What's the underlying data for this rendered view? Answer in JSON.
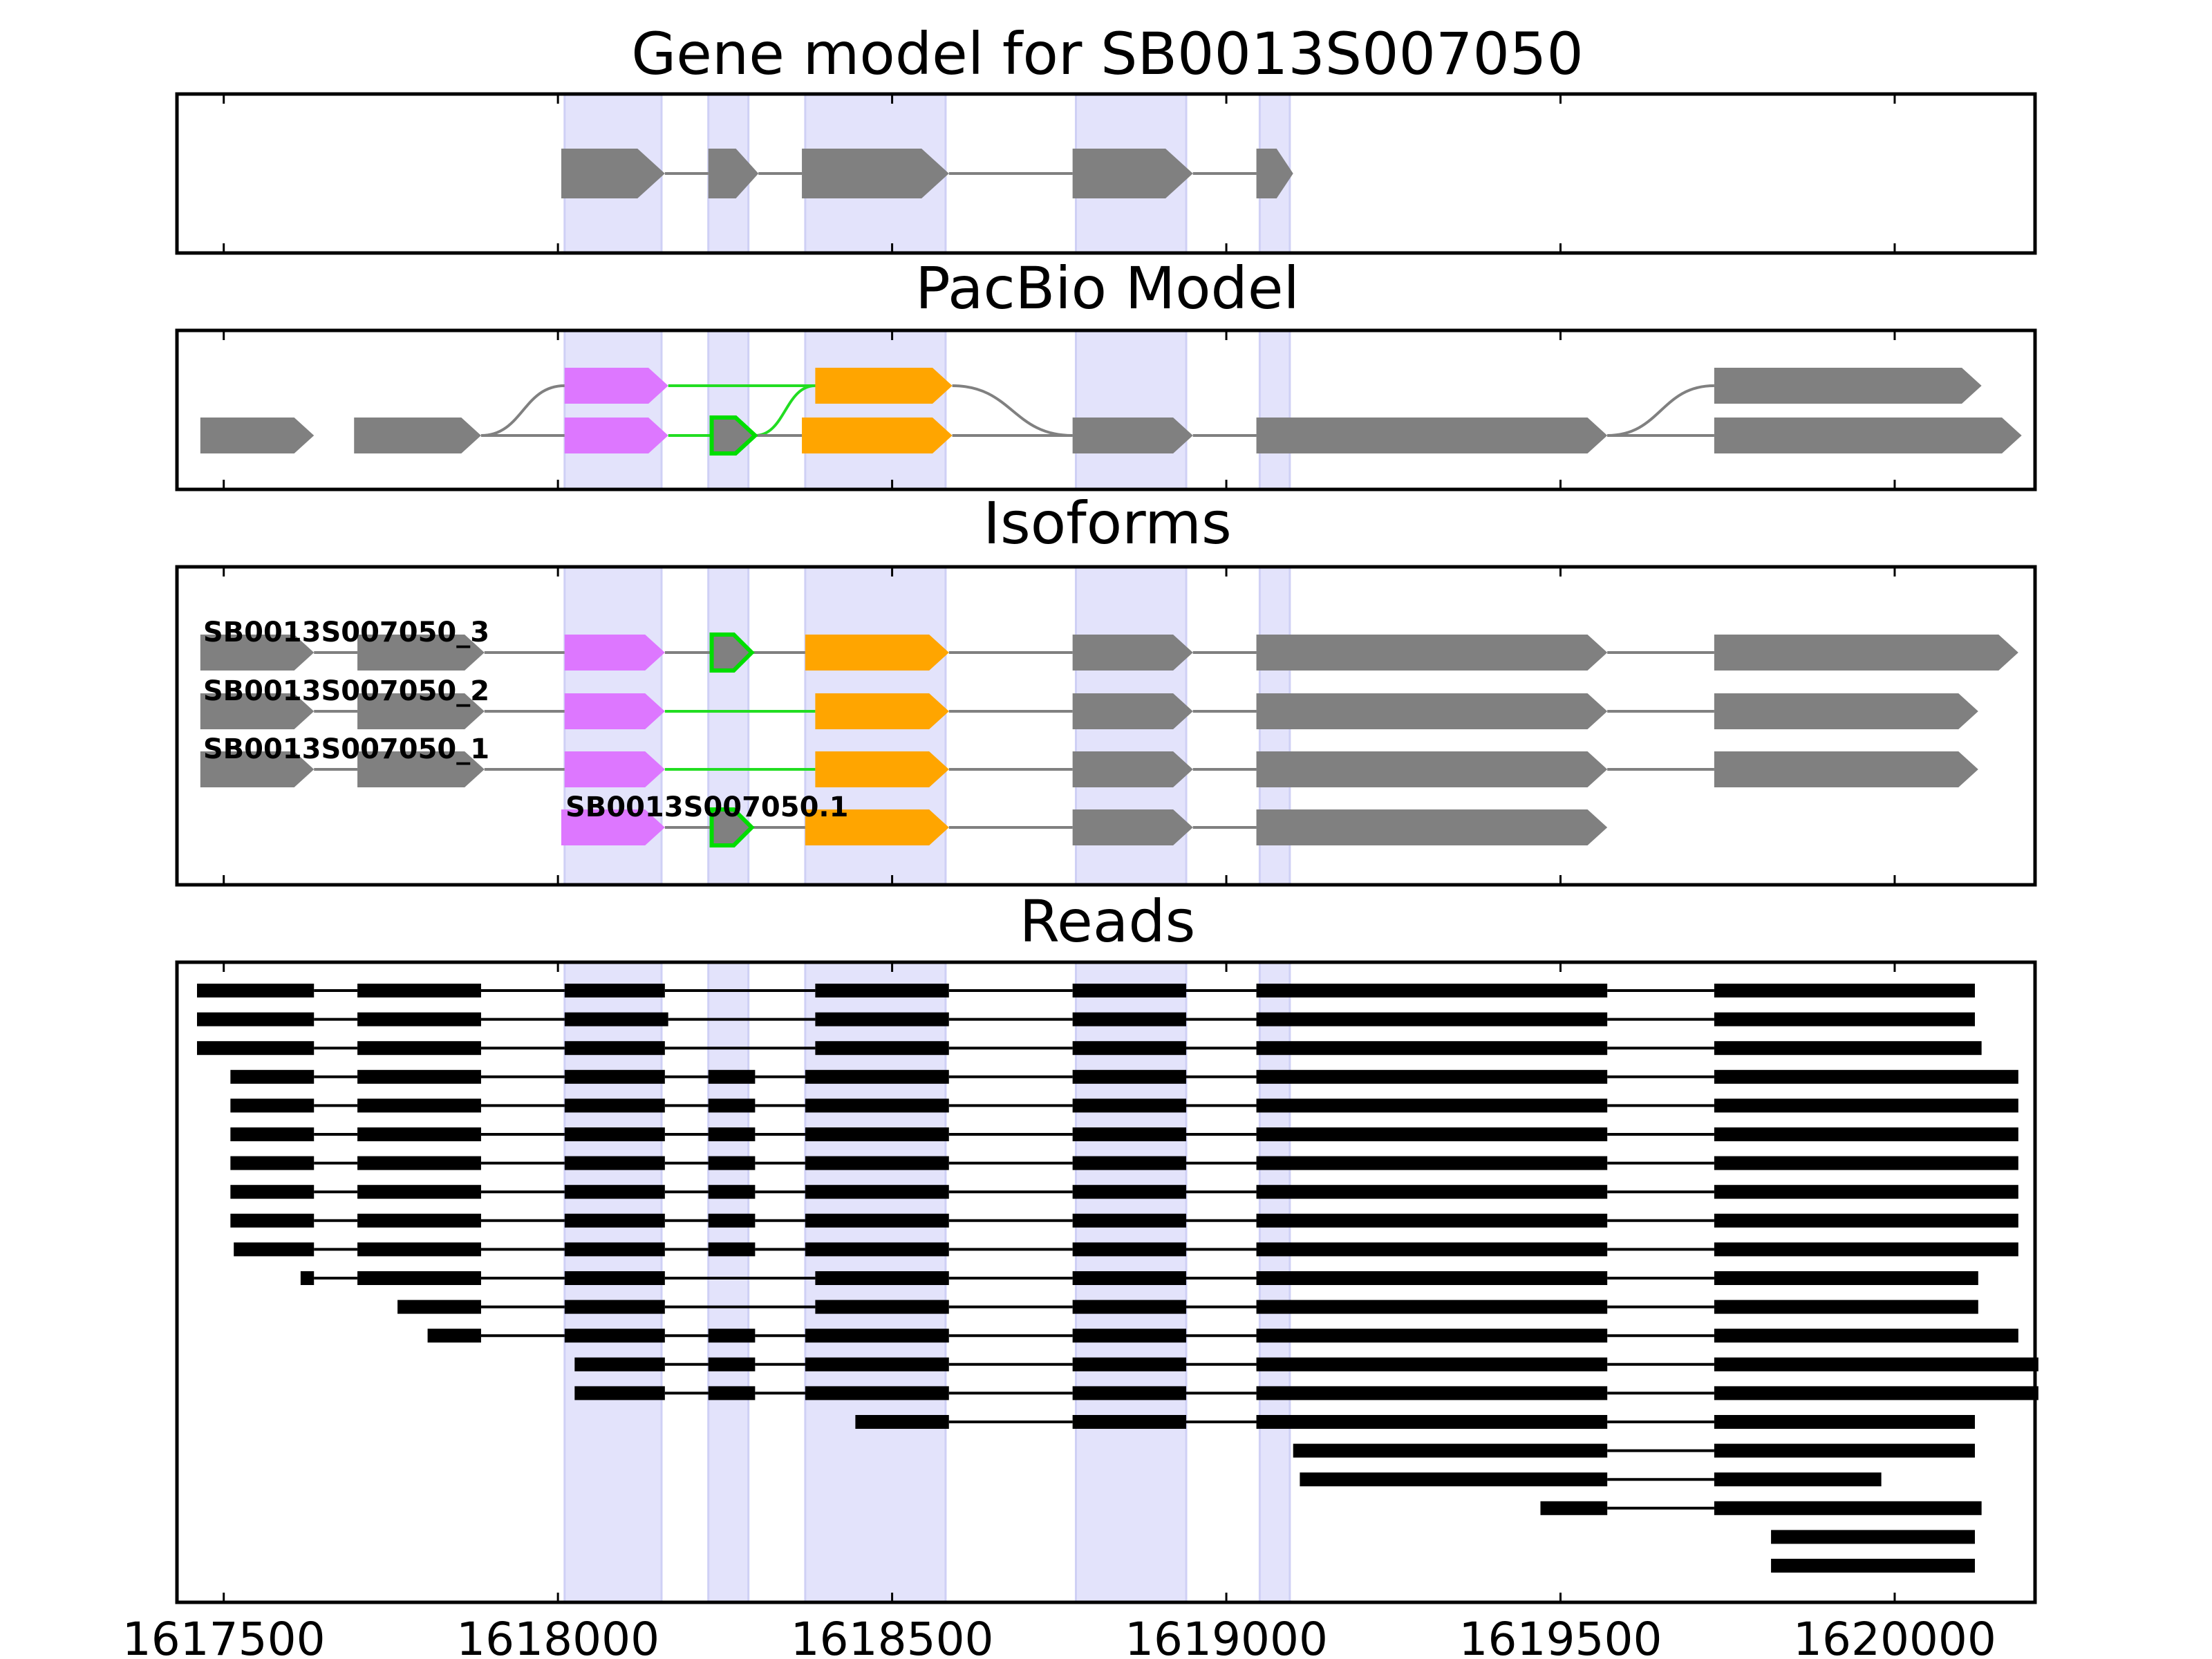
{
  "panels": {
    "gene_model": {
      "title": "Gene model for SB0013S007050"
    },
    "pacbio": {
      "title": "PacBio Model"
    },
    "isoforms": {
      "title": "Isoforms"
    },
    "reads": {
      "title": "Reads"
    }
  },
  "colors": {
    "exon_default": "#808080",
    "exon_magenta": "#dd77ff",
    "exon_orange": "#ffa500",
    "exon_green_outline": "#00dd00",
    "junction_default": "#808080",
    "junction_green": "#22dd22",
    "highlight": "#e3e3fb",
    "read": "#000000"
  },
  "chart_data": {
    "type": "gene_structure",
    "xlim": [
      1617430,
      1620210
    ],
    "x_ticks": [
      1617500,
      1618000,
      1618500,
      1619000,
      1619500,
      1620000
    ],
    "x_tick_labels": [
      "1617500",
      "1618000",
      "1618500",
      "1619000",
      "1619500",
      "1620000"
    ],
    "highlight_regions": [
      [
        1618010,
        1618155
      ],
      [
        1618225,
        1618285
      ],
      [
        1618370,
        1618580
      ],
      [
        1618775,
        1618940
      ],
      [
        1619050,
        1619095
      ]
    ],
    "gene_model": {
      "exons": [
        [
          1618005,
          1618160
        ],
        [
          1618225,
          1618300
        ],
        [
          1618365,
          1618585
        ],
        [
          1618770,
          1618950
        ],
        [
          1619045,
          1619100
        ]
      ]
    },
    "pacbio_model": {
      "rows": [
        {
          "exons": [
            {
              "s": 1618010,
              "e": 1618165,
              "color": "magenta"
            },
            {
              "s": 1618385,
              "e": 1618590,
              "color": "orange"
            },
            {
              "s": 1619730,
              "e": 1620130,
              "color": "default"
            }
          ]
        },
        {
          "exons": [
            {
              "s": 1617465,
              "e": 1617635,
              "color": "default"
            },
            {
              "s": 1617695,
              "e": 1617885,
              "color": "default"
            },
            {
              "s": 1618010,
              "e": 1618165,
              "color": "magenta"
            },
            {
              "s": 1618230,
              "e": 1618295,
              "color": "green"
            },
            {
              "s": 1618365,
              "e": 1618590,
              "color": "orange"
            },
            {
              "s": 1618770,
              "e": 1618950,
              "color": "default"
            },
            {
              "s": 1619045,
              "e": 1619570,
              "color": "default"
            },
            {
              "s": 1619730,
              "e": 1620190,
              "color": "default"
            }
          ]
        }
      ],
      "junctions": [
        {
          "x1": 1617885,
          "r1": 1,
          "x2": 1618010,
          "r2": 0,
          "color": "default"
        },
        {
          "x1": 1617885,
          "r1": 1,
          "x2": 1618010,
          "r2": 1,
          "color": "default"
        },
        {
          "x1": 1618165,
          "r1": 0,
          "x2": 1618385,
          "r2": 0,
          "color": "green"
        },
        {
          "x1": 1618165,
          "r1": 1,
          "x2": 1618230,
          "r2": 1,
          "color": "green"
        },
        {
          "x1": 1618295,
          "r1": 1,
          "x2": 1618385,
          "r2": 0,
          "color": "green"
        },
        {
          "x1": 1618295,
          "r1": 1,
          "x2": 1618365,
          "r2": 1,
          "color": "default"
        },
        {
          "x1": 1618590,
          "r1": 0,
          "x2": 1618770,
          "r2": 1,
          "color": "default"
        },
        {
          "x1": 1618590,
          "r1": 1,
          "x2": 1618770,
          "r2": 1,
          "color": "default"
        },
        {
          "x1": 1618950,
          "r1": 1,
          "x2": 1619045,
          "r2": 1,
          "color": "default"
        },
        {
          "x1": 1619570,
          "r1": 1,
          "x2": 1619730,
          "r2": 0,
          "color": "default"
        },
        {
          "x1": 1619570,
          "r1": 1,
          "x2": 1619730,
          "r2": 1,
          "color": "default"
        }
      ]
    },
    "isoforms": [
      {
        "name": "SB0013S007050_3",
        "exons": [
          {
            "s": 1617465,
            "e": 1617635,
            "color": "default"
          },
          {
            "s": 1617700,
            "e": 1617890,
            "color": "default"
          },
          {
            "s": 1618010,
            "e": 1618160,
            "color": "magenta"
          },
          {
            "s": 1618230,
            "e": 1618290,
            "color": "green"
          },
          {
            "s": 1618370,
            "e": 1618585,
            "color": "orange"
          },
          {
            "s": 1618770,
            "e": 1618950,
            "color": "default"
          },
          {
            "s": 1619045,
            "e": 1619570,
            "color": "default"
          },
          {
            "s": 1619730,
            "e": 1620185,
            "color": "default"
          }
        ],
        "junction_colors": [
          "default",
          "default",
          "default",
          "default",
          "default",
          "default",
          "default"
        ]
      },
      {
        "name": "SB0013S007050_2",
        "exons": [
          {
            "s": 1617465,
            "e": 1617635,
            "color": "default"
          },
          {
            "s": 1617700,
            "e": 1617890,
            "color": "default"
          },
          {
            "s": 1618010,
            "e": 1618160,
            "color": "magenta"
          },
          {
            "s": 1618385,
            "e": 1618585,
            "color": "orange"
          },
          {
            "s": 1618770,
            "e": 1618950,
            "color": "default"
          },
          {
            "s": 1619045,
            "e": 1619570,
            "color": "default"
          },
          {
            "s": 1619730,
            "e": 1620125,
            "color": "default"
          }
        ],
        "junction_colors": [
          "default",
          "default",
          "green",
          "default",
          "default",
          "default"
        ]
      },
      {
        "name": "SB0013S007050_1",
        "exons": [
          {
            "s": 1617465,
            "e": 1617635,
            "color": "default"
          },
          {
            "s": 1617700,
            "e": 1617890,
            "color": "default"
          },
          {
            "s": 1618010,
            "e": 1618160,
            "color": "magenta"
          },
          {
            "s": 1618385,
            "e": 1618585,
            "color": "orange"
          },
          {
            "s": 1618770,
            "e": 1618950,
            "color": "default"
          },
          {
            "s": 1619045,
            "e": 1619570,
            "color": "default"
          },
          {
            "s": 1619730,
            "e": 1620125,
            "color": "default"
          }
        ],
        "junction_colors": [
          "default",
          "default",
          "green",
          "default",
          "default",
          "default"
        ]
      },
      {
        "name": "SB0013S007050.1",
        "exons": [
          {
            "s": 1618005,
            "e": 1618160,
            "color": "magenta"
          },
          {
            "s": 1618230,
            "e": 1618290,
            "color": "green"
          },
          {
            "s": 1618370,
            "e": 1618585,
            "color": "orange"
          },
          {
            "s": 1618770,
            "e": 1618950,
            "color": "default"
          },
          {
            "s": 1619045,
            "e": 1619570,
            "color": "default"
          }
        ],
        "junction_colors": [
          "default",
          "default",
          "default",
          "default"
        ]
      }
    ],
    "reads": [
      [
        [
          1617460,
          1617635
        ],
        [
          1617700,
          1617885
        ],
        [
          1618010,
          1618160
        ],
        [
          1618385,
          1618585
        ],
        [
          1618770,
          1618940
        ],
        [
          1619045,
          1619570
        ],
        [
          1619730,
          1620120
        ]
      ],
      [
        [
          1617460,
          1617635
        ],
        [
          1617700,
          1617885
        ],
        [
          1618010,
          1618165
        ],
        [
          1618385,
          1618585
        ],
        [
          1618770,
          1618940
        ],
        [
          1619045,
          1619570
        ],
        [
          1619730,
          1620120
        ]
      ],
      [
        [
          1617460,
          1617635
        ],
        [
          1617700,
          1617885
        ],
        [
          1618010,
          1618160
        ],
        [
          1618385,
          1618585
        ],
        [
          1618770,
          1618940
        ],
        [
          1619045,
          1619570
        ],
        [
          1619730,
          1620130
        ]
      ],
      [
        [
          1617510,
          1617635
        ],
        [
          1617700,
          1617885
        ],
        [
          1618010,
          1618160
        ],
        [
          1618225,
          1618295
        ],
        [
          1618370,
          1618585
        ],
        [
          1618770,
          1618940
        ],
        [
          1619045,
          1619570
        ],
        [
          1619730,
          1620185
        ]
      ],
      [
        [
          1617510,
          1617635
        ],
        [
          1617700,
          1617885
        ],
        [
          1618010,
          1618160
        ],
        [
          1618225,
          1618295
        ],
        [
          1618370,
          1618585
        ],
        [
          1618770,
          1618940
        ],
        [
          1619045,
          1619570
        ],
        [
          1619730,
          1620185
        ]
      ],
      [
        [
          1617510,
          1617635
        ],
        [
          1617700,
          1617885
        ],
        [
          1618010,
          1618160
        ],
        [
          1618225,
          1618295
        ],
        [
          1618370,
          1618585
        ],
        [
          1618770,
          1618940
        ],
        [
          1619045,
          1619570
        ],
        [
          1619730,
          1620185
        ]
      ],
      [
        [
          1617510,
          1617635
        ],
        [
          1617700,
          1617885
        ],
        [
          1618010,
          1618160
        ],
        [
          1618225,
          1618295
        ],
        [
          1618370,
          1618585
        ],
        [
          1618770,
          1618940
        ],
        [
          1619045,
          1619570
        ],
        [
          1619730,
          1620185
        ]
      ],
      [
        [
          1617510,
          1617635
        ],
        [
          1617700,
          1617885
        ],
        [
          1618010,
          1618160
        ],
        [
          1618225,
          1618295
        ],
        [
          1618370,
          1618585
        ],
        [
          1618770,
          1618940
        ],
        [
          1619045,
          1619570
        ],
        [
          1619730,
          1620185
        ]
      ],
      [
        [
          1617510,
          1617635
        ],
        [
          1617700,
          1617885
        ],
        [
          1618010,
          1618160
        ],
        [
          1618225,
          1618295
        ],
        [
          1618370,
          1618585
        ],
        [
          1618770,
          1618940
        ],
        [
          1619045,
          1619570
        ],
        [
          1619730,
          1620185
        ]
      ],
      [
        [
          1617515,
          1617635
        ],
        [
          1617700,
          1617885
        ],
        [
          1618010,
          1618160
        ],
        [
          1618225,
          1618295
        ],
        [
          1618370,
          1618585
        ],
        [
          1618770,
          1618940
        ],
        [
          1619045,
          1619570
        ],
        [
          1619730,
          1620185
        ]
      ],
      [
        [
          1617615,
          1617635
        ],
        [
          1617700,
          1617885
        ],
        [
          1618010,
          1618160
        ],
        [
          1618385,
          1618585
        ],
        [
          1618770,
          1618940
        ],
        [
          1619045,
          1619570
        ],
        [
          1619730,
          1620125
        ]
      ],
      [
        [
          1617760,
          1617885
        ],
        [
          1618010,
          1618160
        ],
        [
          1618385,
          1618585
        ],
        [
          1618770,
          1618940
        ],
        [
          1619045,
          1619570
        ],
        [
          1619730,
          1620125
        ]
      ],
      [
        [
          1617805,
          1617885
        ],
        [
          1618010,
          1618160
        ],
        [
          1618225,
          1618295
        ],
        [
          1618370,
          1618585
        ],
        [
          1618770,
          1618940
        ],
        [
          1619045,
          1619570
        ],
        [
          1619730,
          1620185
        ]
      ],
      [
        [
          1618025,
          1618160
        ],
        [
          1618225,
          1618295
        ],
        [
          1618370,
          1618585
        ],
        [
          1618770,
          1618940
        ],
        [
          1619045,
          1619570
        ],
        [
          1619730,
          1620215
        ]
      ],
      [
        [
          1618025,
          1618160
        ],
        [
          1618225,
          1618295
        ],
        [
          1618370,
          1618585
        ],
        [
          1618770,
          1618940
        ],
        [
          1619045,
          1619570
        ],
        [
          1619730,
          1620215
        ]
      ],
      [
        [
          1618445,
          1618585
        ],
        [
          1618770,
          1618940
        ],
        [
          1619045,
          1619570
        ],
        [
          1619730,
          1620120
        ]
      ],
      [
        [
          1619100,
          1619570
        ],
        [
          1619730,
          1620120
        ]
      ],
      [
        [
          1619110,
          1619570
        ],
        [
          1619730,
          1619980
        ]
      ],
      [
        [
          1619470,
          1619570
        ],
        [
          1619730,
          1620130
        ]
      ],
      [
        [
          1619815,
          1620120
        ]
      ],
      [
        [
          1619815,
          1620120
        ]
      ]
    ]
  }
}
